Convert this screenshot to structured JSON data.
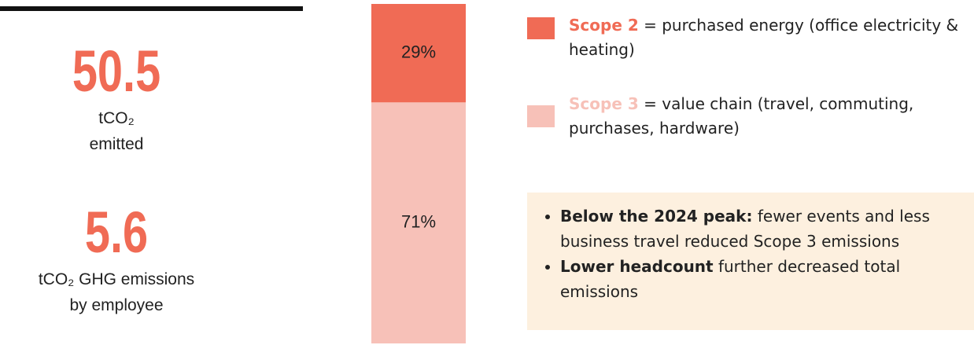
{
  "kpis": [
    {
      "value": 50.5,
      "label_lines": [
        "tCO₂",
        "emitted"
      ]
    },
    {
      "value": 5.6,
      "label_lines": [
        "tCO₂ GHG emissions",
        "by employee"
      ]
    }
  ],
  "chart_data": {
    "type": "bar",
    "stacked": true,
    "categories": [
      null
    ],
    "series": [
      {
        "name": "Scope 2",
        "description": "= purchased energy (office electricity & heating)",
        "color": "#f06b55",
        "values": [
          29
        ],
        "value_labels": [
          "29%"
        ]
      },
      {
        "name": "Scope 3",
        "description": "= value chain (travel, commuting, purchases, hardware)",
        "color": "#f7c1b8",
        "values": [
          71
        ],
        "value_labels": [
          "71%"
        ]
      }
    ],
    "ylim": [
      0,
      100
    ]
  },
  "notes": [
    {
      "bold": "Below the 2024 peak:",
      "text": "fewer events and less business travel reduced Scope 3 emissions"
    },
    {
      "bold": "Lower headcount",
      "text": "further decreased total emissions"
    }
  ]
}
